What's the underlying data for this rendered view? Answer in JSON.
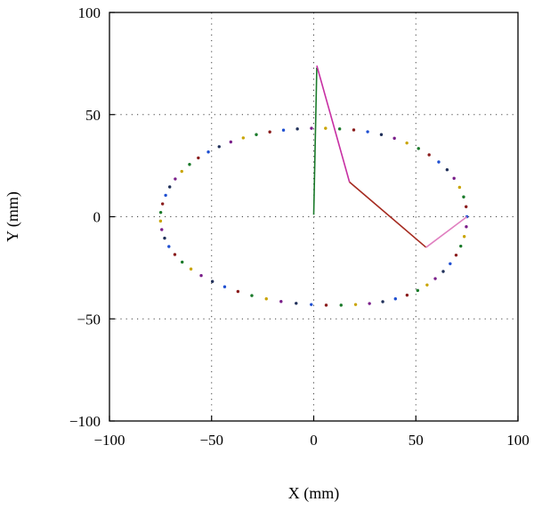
{
  "chart_data": {
    "type": "scatter",
    "title": "",
    "xlabel": "X (mm)",
    "ylabel": "Y (mm)",
    "xlim": [
      -100,
      100
    ],
    "ylim": [
      -100,
      100
    ],
    "x_ticks": [
      -100,
      -50,
      0,
      50,
      100
    ],
    "y_ticks": [
      -100,
      -50,
      0,
      50,
      100
    ],
    "x_tick_labels": [
      "−100",
      "−50",
      "0",
      "50",
      "100"
    ],
    "y_tick_labels": [
      "−100",
      "−50",
      "0",
      "50",
      "100"
    ],
    "grid": "dotted, at ±50 and 0",
    "series": [
      {
        "kind": "points",
        "description": "elliptical trajectory",
        "colors": [
          "#1f4fd1",
          "#8a1c1c",
          "#1a7a2a",
          "#c9a400",
          "#7a1f8a",
          "#20305a"
        ],
        "x": [
          75,
          74.6,
          73.4,
          71.4,
          68.7,
          65.3,
          61.2,
          56.5,
          51.3,
          45.6,
          39.5,
          33.1,
          26.4,
          19.6,
          12.7,
          5.8,
          -1.1,
          -8,
          -14.8,
          -21.5,
          -28.1,
          -34.5,
          -40.6,
          -46.3,
          -51.6,
          -56.5,
          -60.8,
          -64.6,
          -67.8,
          -70.5,
          -72.5,
          -74,
          -74.9,
          -75,
          -74.4,
          -73,
          -70.9,
          -68,
          -64.4,
          -60.1,
          -55.1,
          -49.6,
          -43.6,
          -37.1,
          -30.3,
          -23.2,
          -16,
          -8.6,
          -1.2,
          6.1,
          13.4,
          20.5,
          27.3,
          33.8,
          40,
          45.7,
          50.9,
          55.5,
          59.5,
          63.4,
          66.8,
          69.7,
          72,
          73.7,
          74.7
        ],
        "y": [
          0,
          4.9,
          9.7,
          14.4,
          18.8,
          23,
          26.8,
          30.3,
          33.4,
          36.1,
          38.4,
          40.2,
          41.6,
          42.5,
          43,
          43.3,
          43.3,
          43,
          42.4,
          41.5,
          40.2,
          38.6,
          36.6,
          34.3,
          31.7,
          28.8,
          25.6,
          22.2,
          18.5,
          14.6,
          10.5,
          6.3,
          2.1,
          -2.1,
          -6.3,
          -10.5,
          -14.6,
          -18.5,
          -22.2,
          -25.6,
          -28.8,
          -31.7,
          -34.3,
          -36.6,
          -38.6,
          -40.2,
          -41.5,
          -42.4,
          -43,
          -43.3,
          -43.3,
          -43,
          -42.5,
          -41.6,
          -40.2,
          -38.4,
          -36.1,
          -33.4,
          -30.3,
          -26.8,
          -23,
          -18.8,
          -14.4,
          -9.7,
          -4.9
        ]
      },
      {
        "kind": "line",
        "description": "vertical arm",
        "color": "#1a7a2a",
        "x": [
          0,
          1.5
        ],
        "y": [
          1,
          73
        ]
      },
      {
        "kind": "line",
        "description": "upper link",
        "color": "#c72fa3",
        "x": [
          1.5,
          17.5
        ],
        "y": [
          74,
          17
        ]
      },
      {
        "kind": "line",
        "description": "middle link",
        "color": "#a52a1f",
        "x": [
          17.5,
          55
        ],
        "y": [
          17,
          -15
        ]
      },
      {
        "kind": "line",
        "description": "lower link",
        "color": "#e07fc0",
        "x": [
          55,
          75
        ],
        "y": [
          -15,
          0
        ]
      }
    ]
  }
}
